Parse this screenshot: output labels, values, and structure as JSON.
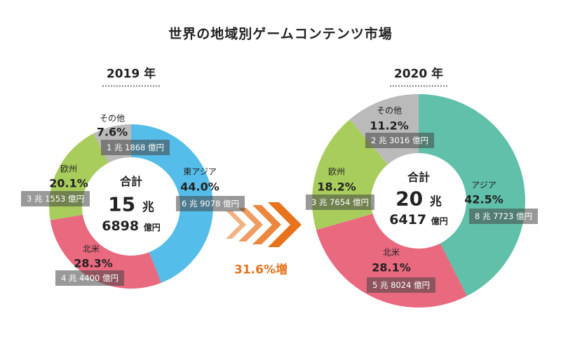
{
  "title": "世界の地域別ゲームコンテンツ市場",
  "growth_label": "31.6%増",
  "colors": {
    "asia_2019": "#55bde9",
    "asia_2020": "#60c0aa",
    "north_america": "#e9697f",
    "europe": "#a9cd5c",
    "other": "#bababa",
    "arrow": "#e8731c"
  },
  "chart_data": [
    {
      "type": "pie",
      "subtype": "donut",
      "title": "2019 年",
      "total": {
        "label": "合計",
        "cho": "15",
        "cho_unit": "兆",
        "oku": "6898",
        "oku_unit": "億円"
      },
      "slices": [
        {
          "name": "東アジア",
          "percent": 44.0,
          "pct_label": "44.0%",
          "amount": "6 兆 9078 億円",
          "color": "#55bde9"
        },
        {
          "name": "北米",
          "percent": 28.3,
          "pct_label": "28.3%",
          "amount": "4 兆 4400 億円",
          "color": "#e9697f"
        },
        {
          "name": "欧州",
          "percent": 20.1,
          "pct_label": "20.1%",
          "amount": "3 兆 1553 億円",
          "color": "#a9cd5c"
        },
        {
          "name": "その他",
          "percent": 7.6,
          "pct_label": "7.6%",
          "amount": "1 兆 1868 億円",
          "color": "#bababa"
        }
      ]
    },
    {
      "type": "pie",
      "subtype": "donut",
      "title": "2020 年",
      "total": {
        "label": "合計",
        "cho": "20",
        "cho_unit": "兆",
        "oku": "6417",
        "oku_unit": "億円"
      },
      "slices": [
        {
          "name": "アジア",
          "percent": 42.5,
          "pct_label": "42.5%",
          "amount": "8 兆 7723 億円",
          "color": "#60c0aa"
        },
        {
          "name": "北米",
          "percent": 28.1,
          "pct_label": "28.1%",
          "amount": "5 兆 8024 億円",
          "color": "#e9697f"
        },
        {
          "name": "欧州",
          "percent": 18.2,
          "pct_label": "18.2%",
          "amount": "3 兆 7654 億円",
          "color": "#a9cd5c"
        },
        {
          "name": "その他",
          "percent": 11.2,
          "pct_label": "11.2%",
          "amount": "2 兆 3016 億円",
          "color": "#bababa"
        }
      ]
    }
  ]
}
